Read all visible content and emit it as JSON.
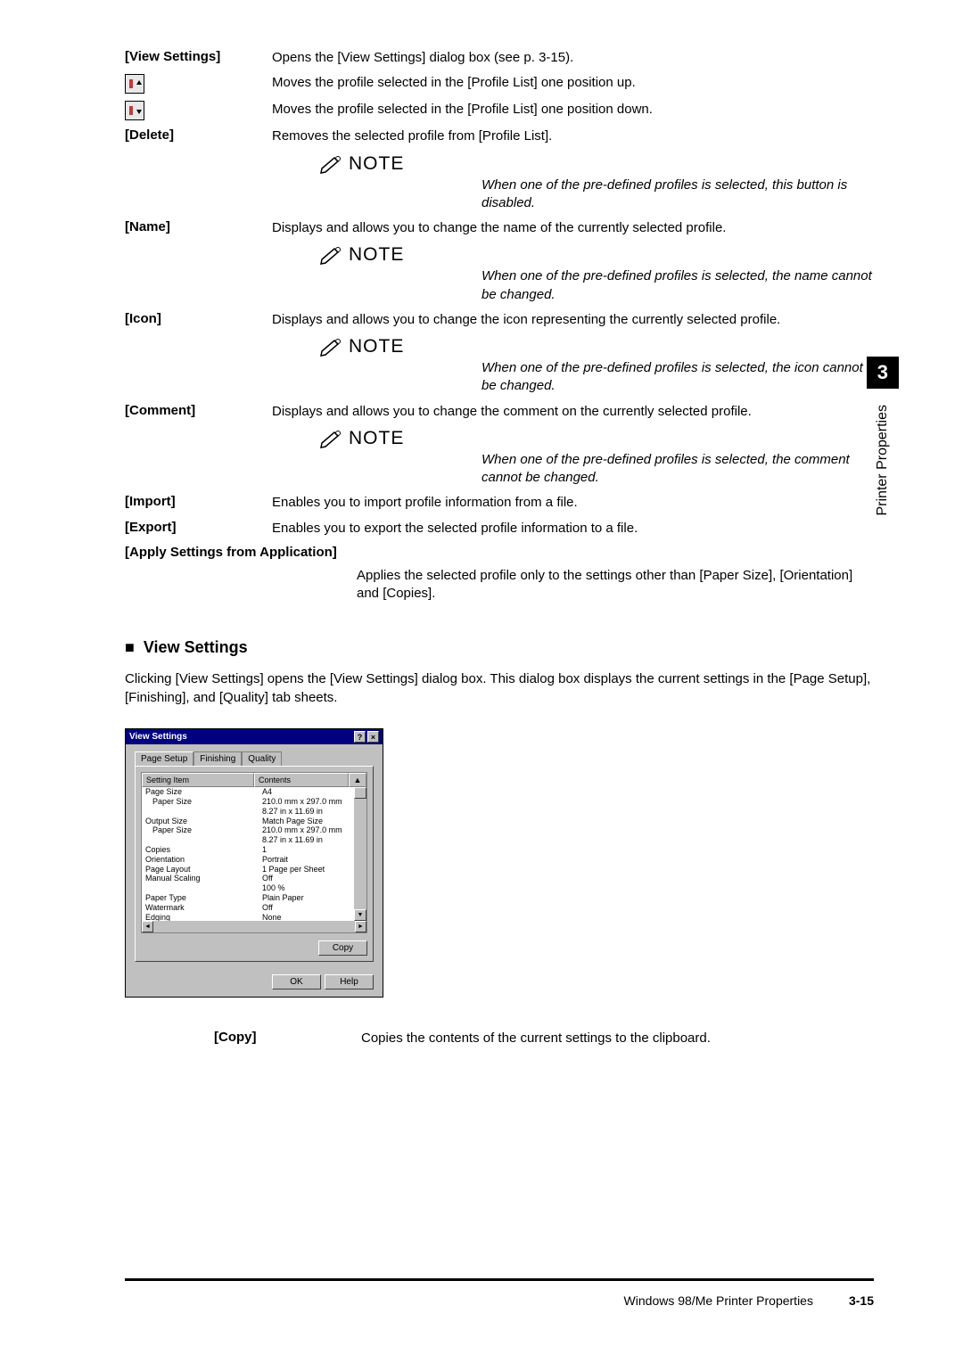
{
  "defTable": [
    {
      "label": "[View Settings]",
      "desc": "Opens the [View Settings] dialog box (see p. 3-15)."
    },
    {
      "label": "icon-up",
      "desc": "Moves the profile selected in the [Profile List] one position up."
    },
    {
      "label": "icon-down",
      "desc": "Moves the profile selected in the [Profile List] one position down."
    },
    {
      "label": "[Delete]",
      "desc": "Removes the selected profile from [Profile List]."
    }
  ],
  "notes": {
    "heading": "NOTE",
    "delete": "When one of the pre-defined profiles is selected, this button is disabled.",
    "name": "When one of the pre-defined profiles is selected, the name cannot be changed.",
    "icon": "When one of the pre-defined profiles is selected, the icon cannot be changed.",
    "comment": "When one of the pre-defined profiles is selected, the comment cannot be changed."
  },
  "rows2": [
    {
      "label": "[Name]",
      "desc": "Displays and allows you to change the name of the currently selected profile."
    },
    {
      "label": "[Icon]",
      "desc": "Displays and allows you to change the icon representing the currently selected profile."
    },
    {
      "label": "[Comment]",
      "desc": "Displays and allows you to change the comment on the currently selected profile."
    },
    {
      "label": "[Import]",
      "desc": "Enables you to import profile information from a file."
    },
    {
      "label": "[Export]",
      "desc": "Enables you to export the selected profile information to a file."
    }
  ],
  "applyLabel": "[Apply Settings from Application]",
  "applyDesc": "Applies the selected profile only to the settings other than [Paper Size], [Orientation] and [Copies].",
  "section": {
    "title": "View Settings",
    "bullet": "■",
    "para": "Clicking [View Settings] opens the [View Settings] dialog box. This dialog box displays the current settings in the [Page Setup], [Finishing], and [Quality] tab sheets."
  },
  "dialog": {
    "title": "View Settings",
    "tabs": [
      "Page Setup",
      "Finishing",
      "Quality"
    ],
    "cols": [
      "Setting Item",
      "Contents"
    ],
    "rows": [
      {
        "a": "Page Size",
        "b": "A4",
        "indent": false
      },
      {
        "a": "Paper Size",
        "b": "210.0 mm x 297.0 mm",
        "indent": true
      },
      {
        "a": "",
        "b": "8.27 in x 11.69 in",
        "indent": true
      },
      {
        "a": "Output Size",
        "b": "Match Page Size",
        "indent": false
      },
      {
        "a": "Paper Size",
        "b": "210.0 mm x 297.0 mm",
        "indent": true
      },
      {
        "a": "",
        "b": "8.27 in x 11.69 in",
        "indent": true
      },
      {
        "a": "Copies",
        "b": "1",
        "indent": false
      },
      {
        "a": "Orientation",
        "b": "Portrait",
        "indent": false
      },
      {
        "a": "Page Layout",
        "b": "1 Page per Sheet",
        "indent": false
      },
      {
        "a": "Manual Scaling",
        "b": "Off",
        "indent": false
      },
      {
        "a": "",
        "b": "100 %",
        "indent": true
      },
      {
        "a": "Paper Type",
        "b": "Plain Paper",
        "indent": false
      },
      {
        "a": "Watermark",
        "b": "Off",
        "indent": false
      },
      {
        "a": "Edging",
        "b": "None",
        "indent": false
      }
    ],
    "buttons": {
      "copy": "Copy",
      "ok": "OK",
      "help": "Help"
    }
  },
  "copyRow": {
    "label": "[Copy]",
    "desc": "Copies the contents of the current settings to the clipboard."
  },
  "side": {
    "number": "3",
    "text": "Printer Properties"
  },
  "footer": {
    "text": "Windows 98/Me Printer Properties",
    "pageNum": "3-15"
  },
  "colors": {
    "titlebar": "#000080",
    "win": "#c0c0c0"
  }
}
